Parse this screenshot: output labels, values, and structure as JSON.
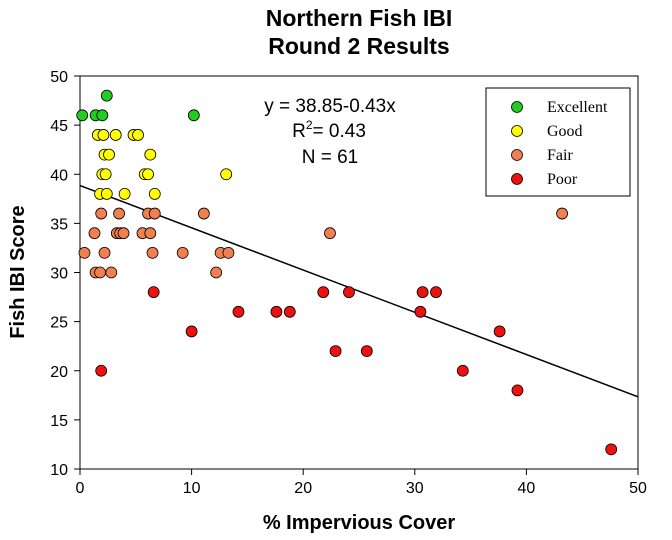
{
  "chart_data": {
    "type": "scatter",
    "title": [
      "Northern Fish IBI",
      "Round 2 Results"
    ],
    "xlabel": "% Impervious Cover",
    "ylabel": "Fish IBI Score",
    "xlim": [
      0,
      50
    ],
    "ylim": [
      10,
      50
    ],
    "xticks": [
      0,
      10,
      20,
      30,
      40,
      50
    ],
    "yticks": [
      10,
      15,
      20,
      25,
      30,
      35,
      40,
      45,
      50
    ],
    "grid": false,
    "legend_position": "top-right",
    "annotation": {
      "equation": "y = 38.85-0.43x",
      "r2_prefix": "R",
      "r2_sup": "2",
      "r2_suffix": "= 0.43",
      "n": "N = 61"
    },
    "trendline": {
      "intercept": 38.85,
      "slope": -0.43,
      "x_range": [
        0,
        50
      ]
    },
    "series": [
      {
        "name": "Excellent",
        "color": "#22cc22",
        "points": [
          [
            0.2,
            46
          ],
          [
            1.4,
            46
          ],
          [
            2.0,
            46
          ],
          [
            2.4,
            48
          ],
          [
            10.2,
            46
          ]
        ]
      },
      {
        "name": "Good",
        "color": "#ffff00",
        "points": [
          [
            1.6,
            44
          ],
          [
            2.1,
            44
          ],
          [
            3.2,
            44
          ],
          [
            4.8,
            44
          ],
          [
            5.2,
            44
          ],
          [
            2.2,
            42
          ],
          [
            2.6,
            42
          ],
          [
            6.3,
            42
          ],
          [
            2.0,
            40
          ],
          [
            2.3,
            40
          ],
          [
            5.8,
            40
          ],
          [
            6.1,
            40
          ],
          [
            13.1,
            40
          ],
          [
            1.8,
            38
          ],
          [
            2.4,
            38
          ],
          [
            4.0,
            38
          ],
          [
            6.7,
            38
          ]
        ]
      },
      {
        "name": "Fair",
        "color": "#f08050",
        "points": [
          [
            1.9,
            36
          ],
          [
            3.5,
            36
          ],
          [
            6.1,
            36
          ],
          [
            6.7,
            36
          ],
          [
            11.1,
            36
          ],
          [
            43.2,
            36
          ],
          [
            1.3,
            34
          ],
          [
            3.3,
            34
          ],
          [
            3.6,
            34
          ],
          [
            3.9,
            34
          ],
          [
            5.6,
            34
          ],
          [
            6.3,
            34
          ],
          [
            22.4,
            34
          ],
          [
            0.4,
            32
          ],
          [
            2.2,
            32
          ],
          [
            6.5,
            32
          ],
          [
            9.2,
            32
          ],
          [
            12.6,
            32
          ],
          [
            13.3,
            32
          ],
          [
            1.4,
            30
          ],
          [
            1.8,
            30
          ],
          [
            2.8,
            30
          ],
          [
            12.2,
            30
          ]
        ]
      },
      {
        "name": "Poor",
        "color": "#ee1111",
        "points": [
          [
            6.6,
            28
          ],
          [
            21.8,
            28
          ],
          [
            24.1,
            28
          ],
          [
            30.7,
            28
          ],
          [
            31.9,
            28
          ],
          [
            14.2,
            26
          ],
          [
            17.6,
            26
          ],
          [
            18.8,
            26
          ],
          [
            30.5,
            26
          ],
          [
            10.0,
            24
          ],
          [
            37.6,
            24
          ],
          [
            22.9,
            22
          ],
          [
            25.7,
            22
          ],
          [
            1.9,
            20
          ],
          [
            34.3,
            20
          ],
          [
            39.2,
            18
          ],
          [
            47.6,
            12
          ]
        ]
      }
    ]
  }
}
